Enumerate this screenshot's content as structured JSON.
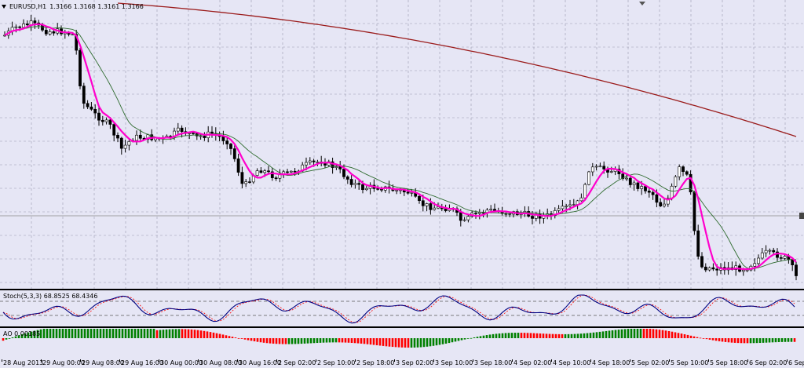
{
  "header": {
    "symbol": "EURUSD,H1",
    "ohlc": "1.3166 1.3168 1.3161 1.3166"
  },
  "indicators": {
    "stoch_label": "Stoch(5,3,3) 68.8525 68.4346",
    "ao_label": "AO 0.00185"
  },
  "time_axis": {
    "labels": [
      "28 Aug 2013",
      "29 Aug 00:00",
      "29 Aug 08:00",
      "29 Aug 16:00",
      "30 Aug 00:00",
      "30 Aug 08:00",
      "30 Aug 16:00",
      "2 Sep 02:00",
      "2 Sep 10:00",
      "2 Sep 18:00",
      "3 Sep 02:00",
      "3 Sep 10:00",
      "3 Sep 18:00",
      "4 Sep 02:00",
      "4 Sep 10:00",
      "4 Sep 18:00",
      "5 Sep 02:00",
      "5 Sep 10:00",
      "5 Sep 18:00",
      "6 Sep 02:00",
      "6 Sep"
    ]
  },
  "colors": {
    "background": "#e6e6f5",
    "bull_candle": "#ffffff",
    "bear_candle": "#000000",
    "fast_ma": "#ff00cc",
    "mid_ma": "#2e6b2e",
    "slow_ma": "#9b1c1c",
    "stoch_main": "#000080",
    "stoch_signal": "#ff0000",
    "ao_up": "#008000",
    "ao_down": "#ff0000",
    "grid": "#9a9ab0"
  }
}
